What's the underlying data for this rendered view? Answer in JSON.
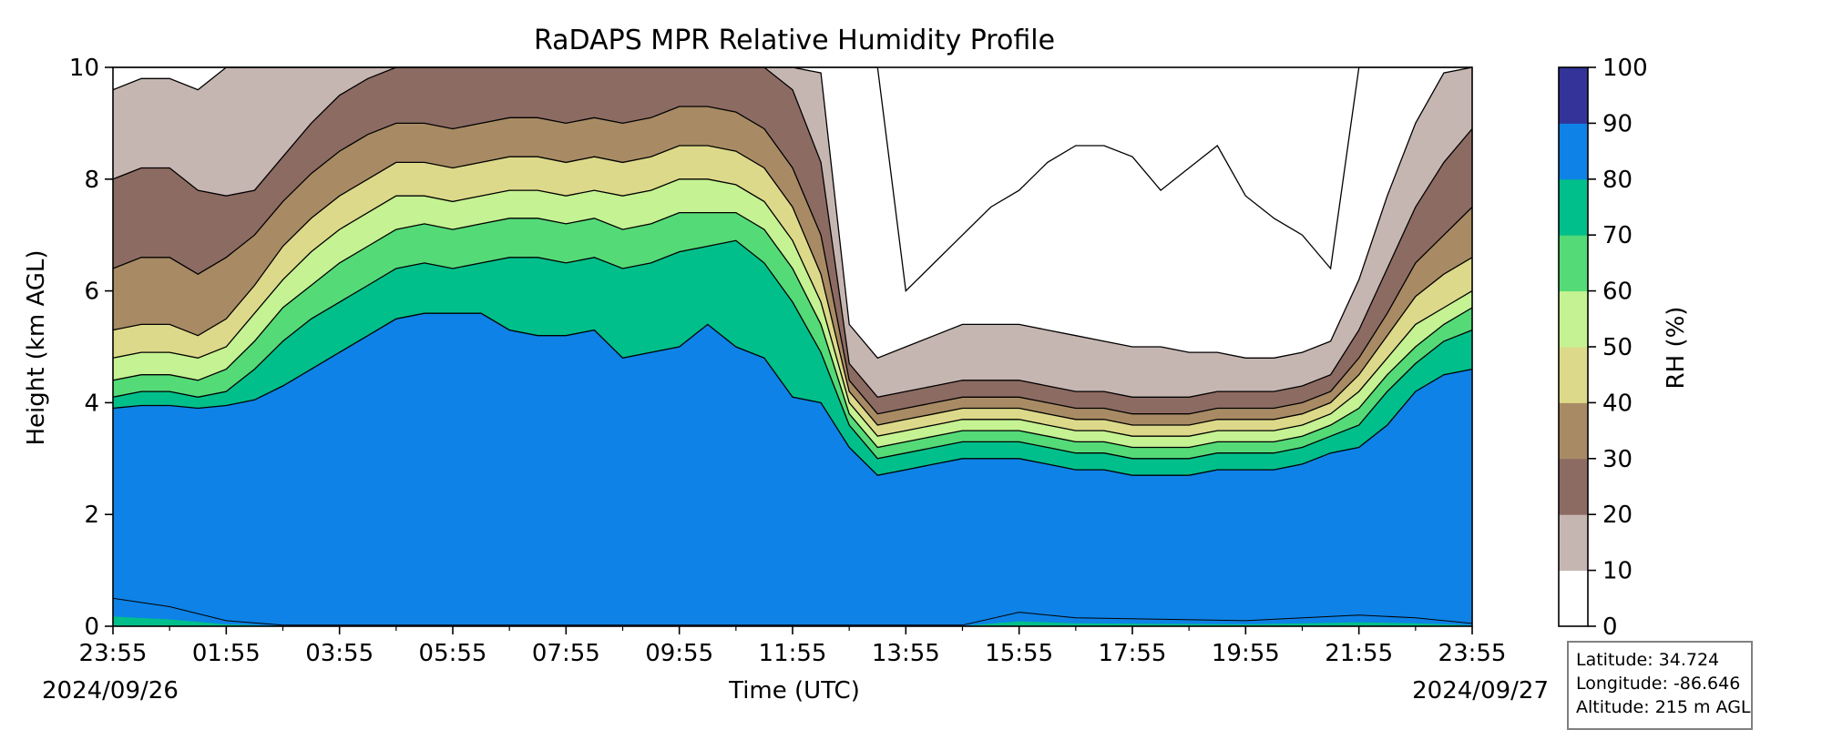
{
  "chart_data": {
    "type": "heatmap",
    "title": "RaDAPS MPR Relative Humidity Profile",
    "xlabel": "Time (UTC)",
    "ylabel": "Height (km AGL)",
    "colorbar_label": "RH (%)",
    "start_date": "2024/09/26",
    "end_date": "2024/09/27",
    "x_tick_labels": [
      "23:55",
      "01:55",
      "03:55",
      "05:55",
      "07:55",
      "09:55",
      "11:55",
      "13:55",
      "15:55",
      "17:55",
      "19:55",
      "21:55",
      "23:55"
    ],
    "x_tick_hours": [
      0,
      2,
      4,
      6,
      8,
      10,
      12,
      14,
      16,
      18,
      20,
      22,
      24
    ],
    "ylim": [
      0,
      10
    ],
    "y_ticks": [
      0,
      2,
      4,
      6,
      8,
      10
    ],
    "levels": [
      0,
      10,
      20,
      30,
      40,
      50,
      60,
      70,
      80,
      90,
      100
    ],
    "level_colors": [
      "#ffffff",
      "#c6b6b2",
      "#8c6b63",
      "#a88b64",
      "#ddd98a",
      "#c5f292",
      "#55da78",
      "#01bf8a",
      "#0e82e6",
      "#333399"
    ],
    "times_hours": [
      0,
      0.5,
      1,
      1.5,
      2,
      2.5,
      3,
      3.5,
      4,
      4.5,
      5,
      5.5,
      6,
      6.5,
      7,
      7.5,
      8,
      8.5,
      9,
      9.5,
      10,
      10.5,
      11,
      11.5,
      12,
      12.5,
      13,
      13.5,
      14,
      14.5,
      15,
      15.5,
      16,
      16.5,
      17,
      17.5,
      18,
      18.5,
      19,
      19.5,
      20,
      20.5,
      21,
      21.5,
      22,
      22.5,
      23,
      23.5,
      24
    ],
    "contour_heights_km": [
      {
        "rh": 90,
        "values": [
          3.9,
          3.95,
          3.95,
          3.9,
          3.95,
          4.05,
          4.3,
          4.6,
          4.9,
          5.2,
          5.5,
          5.6,
          5.6,
          5.6,
          5.3,
          5.2,
          5.2,
          5.3,
          4.8,
          4.9,
          5.0,
          5.4,
          5.0,
          4.8,
          4.1,
          4.0,
          3.2,
          2.7,
          2.8,
          2.9,
          3.0,
          3.0,
          3.0,
          2.9,
          2.8,
          2.8,
          2.7,
          2.7,
          2.7,
          2.8,
          2.8,
          2.8,
          2.9,
          3.1,
          3.2,
          3.6,
          4.2,
          4.5,
          4.6
        ]
      },
      {
        "rh": 80,
        "values": [
          4.1,
          4.2,
          4.2,
          4.1,
          4.2,
          4.6,
          5.1,
          5.5,
          5.8,
          6.1,
          6.4,
          6.5,
          6.4,
          6.5,
          6.6,
          6.6,
          6.5,
          6.6,
          6.4,
          6.5,
          6.7,
          6.8,
          6.9,
          6.5,
          5.8,
          4.9,
          3.6,
          3.0,
          3.1,
          3.2,
          3.3,
          3.3,
          3.3,
          3.2,
          3.1,
          3.1,
          3.0,
          3.0,
          3.0,
          3.1,
          3.1,
          3.1,
          3.2,
          3.4,
          3.6,
          4.2,
          4.7,
          5.1,
          5.3
        ]
      },
      {
        "rh": 70,
        "values": [
          4.4,
          4.5,
          4.5,
          4.4,
          4.6,
          5.1,
          5.7,
          6.1,
          6.5,
          6.8,
          7.1,
          7.2,
          7.1,
          7.2,
          7.3,
          7.3,
          7.2,
          7.3,
          7.1,
          7.2,
          7.4,
          7.4,
          7.4,
          7.1,
          6.4,
          5.4,
          3.8,
          3.2,
          3.3,
          3.4,
          3.5,
          3.5,
          3.5,
          3.4,
          3.3,
          3.3,
          3.2,
          3.2,
          3.2,
          3.3,
          3.3,
          3.3,
          3.4,
          3.6,
          3.9,
          4.5,
          5.0,
          5.4,
          5.7
        ]
      },
      {
        "rh": 60,
        "values": [
          4.8,
          4.9,
          4.9,
          4.8,
          5.0,
          5.6,
          6.2,
          6.7,
          7.1,
          7.4,
          7.7,
          7.7,
          7.6,
          7.7,
          7.8,
          7.8,
          7.7,
          7.8,
          7.7,
          7.8,
          8.0,
          8.0,
          7.9,
          7.6,
          6.9,
          5.8,
          4.0,
          3.4,
          3.5,
          3.6,
          3.7,
          3.7,
          3.7,
          3.6,
          3.5,
          3.5,
          3.4,
          3.4,
          3.4,
          3.5,
          3.5,
          3.5,
          3.6,
          3.8,
          4.2,
          4.8,
          5.4,
          5.7,
          6.0
        ]
      },
      {
        "rh": 50,
        "values": [
          5.3,
          5.4,
          5.4,
          5.2,
          5.5,
          6.1,
          6.8,
          7.3,
          7.7,
          8.0,
          8.3,
          8.3,
          8.2,
          8.3,
          8.4,
          8.4,
          8.3,
          8.4,
          8.3,
          8.4,
          8.6,
          8.6,
          8.5,
          8.2,
          7.5,
          6.3,
          4.2,
          3.6,
          3.7,
          3.8,
          3.9,
          3.9,
          3.9,
          3.8,
          3.7,
          3.7,
          3.6,
          3.6,
          3.6,
          3.7,
          3.7,
          3.7,
          3.8,
          4.0,
          4.5,
          5.2,
          5.9,
          6.3,
          6.6
        ]
      },
      {
        "rh": 40,
        "values": [
          6.4,
          6.6,
          6.6,
          6.3,
          6.6,
          7.0,
          7.6,
          8.1,
          8.5,
          8.8,
          9.0,
          9.0,
          8.9,
          9.0,
          9.1,
          9.1,
          9.0,
          9.1,
          9.0,
          9.1,
          9.3,
          9.3,
          9.2,
          8.9,
          8.2,
          7.0,
          4.4,
          3.8,
          3.9,
          4.0,
          4.1,
          4.1,
          4.1,
          4.0,
          3.9,
          3.9,
          3.8,
          3.8,
          3.8,
          3.9,
          3.9,
          3.9,
          4.0,
          4.2,
          4.8,
          5.6,
          6.5,
          7.0,
          7.5
        ]
      },
      {
        "rh": 30,
        "values": [
          8.0,
          8.2,
          8.2,
          7.8,
          7.7,
          7.8,
          8.4,
          9.0,
          9.5,
          9.8,
          10,
          10,
          10,
          10,
          10,
          10,
          10,
          10,
          10,
          10,
          10,
          10,
          10,
          10,
          9.6,
          8.3,
          4.7,
          4.1,
          4.2,
          4.3,
          4.4,
          4.4,
          4.4,
          4.3,
          4.2,
          4.2,
          4.1,
          4.1,
          4.1,
          4.2,
          4.2,
          4.2,
          4.3,
          4.5,
          5.3,
          6.4,
          7.5,
          8.3,
          8.9
        ]
      },
      {
        "rh": 20,
        "values": [
          9.6,
          9.8,
          9.8,
          9.6,
          10,
          10,
          10,
          10,
          10,
          10,
          10,
          10,
          10,
          10,
          10,
          10,
          10,
          10,
          10,
          10,
          10,
          10,
          10,
          10,
          10,
          9.9,
          5.4,
          4.8,
          5.0,
          5.2,
          5.4,
          5.4,
          5.4,
          5.3,
          5.2,
          5.1,
          5.0,
          5.0,
          4.9,
          4.9,
          4.8,
          4.8,
          4.9,
          5.1,
          6.2,
          7.7,
          9.0,
          9.9,
          10
        ]
      },
      {
        "rh": 10,
        "values": [
          10,
          10,
          10,
          10,
          10,
          10,
          10,
          10,
          10,
          10,
          10,
          10,
          10,
          10,
          10,
          10,
          10,
          10,
          10,
          10,
          10,
          10,
          10,
          10,
          10,
          10,
          10,
          10,
          6.0,
          6.5,
          7.0,
          7.5,
          7.8,
          8.3,
          8.6,
          8.6,
          8.4,
          7.8,
          8.2,
          8.6,
          7.7,
          7.3,
          7.0,
          6.4,
          10,
          10,
          10,
          10,
          10
        ]
      }
    ],
    "surface_layer_max_height_km": 0.5,
    "grid": false
  },
  "info_box": {
    "latitude": "Latitude: 34.724",
    "longitude": "Longitude: -86.646",
    "altitude": "Altitude: 215 m AGL"
  }
}
